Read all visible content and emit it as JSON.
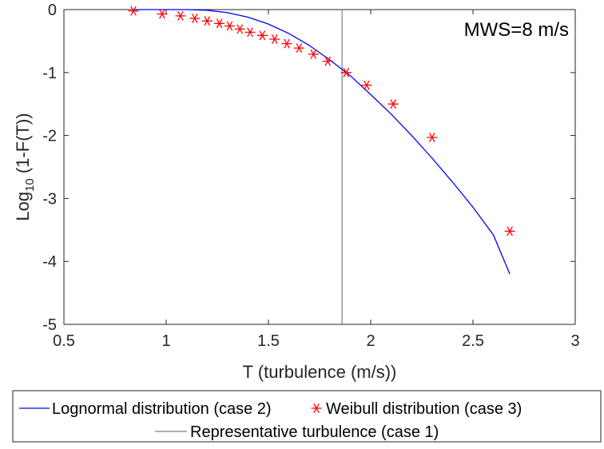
{
  "chart_data": {
    "type": "line",
    "xlabel": "T (turbulence (m/s))",
    "ylabel": {
      "prefix": "Log",
      "subscript": "10",
      "suffix": " (1-F(T))"
    },
    "xlim": [
      0.5,
      3
    ],
    "ylim": [
      -5,
      0
    ],
    "xticks": [
      0.5,
      1,
      1.5,
      2,
      2.5,
      3
    ],
    "xtick_labels": [
      "0.5",
      "1",
      "1.5",
      "2",
      "2.5",
      "3"
    ],
    "yticks": [
      0,
      -1,
      -2,
      -3,
      -4,
      -5
    ],
    "ytick_labels": [
      "0",
      "-1",
      "-2",
      "-3",
      "-4",
      "-5"
    ],
    "grid": false,
    "annotation": "MWS=8 m/s",
    "legend_placement": "bottom, outside plot",
    "series": [
      {
        "name": "Lognormal distribution (case 2)",
        "kind": "line",
        "color": "#0000ff",
        "x": [
          0.84,
          1.0,
          1.1,
          1.2,
          1.3,
          1.4,
          1.5,
          1.6,
          1.7,
          1.8,
          1.9,
          2.0,
          2.1,
          2.2,
          2.3,
          2.4,
          2.5,
          2.6,
          2.68
        ],
        "y": [
          0.0,
          0.0,
          0.0,
          -0.01,
          -0.05,
          -0.12,
          -0.23,
          -0.38,
          -0.57,
          -0.8,
          -1.05,
          -1.35,
          -1.66,
          -2.0,
          -2.36,
          -2.74,
          -3.14,
          -3.58,
          -4.2
        ]
      },
      {
        "name": "Weibull distribution (case 3)",
        "kind": "marker",
        "marker": "asterisk",
        "color": "#ff0000",
        "x": [
          0.84,
          0.98,
          1.07,
          1.14,
          1.2,
          1.26,
          1.31,
          1.36,
          1.41,
          1.47,
          1.53,
          1.59,
          1.65,
          1.72,
          1.79,
          1.88,
          1.98,
          2.11,
          2.3,
          2.68
        ],
        "y": [
          -0.02,
          -0.07,
          -0.1,
          -0.14,
          -0.18,
          -0.22,
          -0.26,
          -0.31,
          -0.36,
          -0.41,
          -0.47,
          -0.54,
          -0.61,
          -0.71,
          -0.82,
          -1.0,
          -1.2,
          -1.5,
          -2.03,
          -3.52
        ]
      },
      {
        "name": "Representative turbulence (case 1)",
        "kind": "vline",
        "color": "#808080",
        "x": 1.86
      }
    ]
  }
}
